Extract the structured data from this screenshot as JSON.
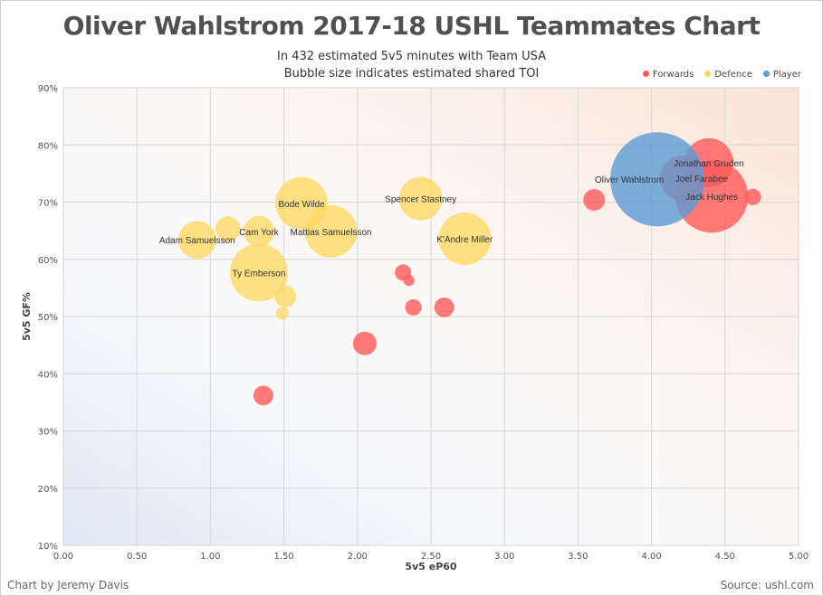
{
  "chart_data": {
    "type": "scatter",
    "subtype": "bubble",
    "title": "Oliver Wahlstrom 2017-18 USHL Teammates Chart",
    "subtitle": [
      "In 432 estimated 5v5 minutes with Team USA",
      "Bubble size indicates estimated shared TOI"
    ],
    "xlabel": "5v5 eP60",
    "ylabel": "5v5 GF%",
    "xlim": [
      0,
      5
    ],
    "ylim": [
      10,
      90
    ],
    "xticks": [
      "0.00",
      "0.50",
      "1.00",
      "1.50",
      "2.00",
      "2.50",
      "3.00",
      "3.50",
      "4.00",
      "4.50",
      "5.00"
    ],
    "yticks": [
      "10%",
      "20%",
      "30%",
      "40%",
      "50%",
      "60%",
      "70%",
      "80%",
      "90%"
    ],
    "grid": true,
    "legend_position": "top-right",
    "series": [
      {
        "name": "Forwards",
        "color": "#ff5a5a",
        "points": [
          {
            "label": "",
            "x": 3.61,
            "y": 70.4,
            "size": 23
          },
          {
            "label": "",
            "x": 4.69,
            "y": 70.9,
            "size": 13
          },
          {
            "label": "Jonathan Gruden",
            "x": 4.39,
            "y": 76.9,
            "size": 117
          },
          {
            "label": "Jack Hughes",
            "x": 4.41,
            "y": 71.0,
            "size": 256
          },
          {
            "label": "Joel Farabee",
            "x": 4.21,
            "y": 74.2,
            "size": 100
          },
          {
            "label": "",
            "x": 2.31,
            "y": 57.7,
            "size": 13
          },
          {
            "label": "",
            "x": 2.35,
            "y": 56.3,
            "size": 6
          },
          {
            "label": "",
            "x": 2.38,
            "y": 51.6,
            "size": 13
          },
          {
            "label": "",
            "x": 2.59,
            "y": 51.6,
            "size": 19
          },
          {
            "label": "",
            "x": 2.05,
            "y": 45.3,
            "size": 27
          },
          {
            "label": "",
            "x": 1.36,
            "y": 36.2,
            "size": 19
          }
        ]
      },
      {
        "name": "Defence",
        "color": "#ffd966",
        "points": [
          {
            "label": "Adam Samuelsson",
            "x": 0.91,
            "y": 63.4,
            "size": 70
          },
          {
            "label": "",
            "x": 1.12,
            "y": 65.3,
            "size": 31
          },
          {
            "label": "Cam York",
            "x": 1.33,
            "y": 64.9,
            "size": 46
          },
          {
            "label": "Bode Wilde",
            "x": 1.62,
            "y": 69.8,
            "size": 134
          },
          {
            "label": "Mattias Samuelsson",
            "x": 1.82,
            "y": 64.9,
            "size": 134
          },
          {
            "label": "Spencer Stastney",
            "x": 2.43,
            "y": 70.6,
            "size": 92
          },
          {
            "label": "K'Andre Miller",
            "x": 2.73,
            "y": 63.6,
            "size": 134
          },
          {
            "label": "Ty Emberson",
            "x": 1.33,
            "y": 57.7,
            "size": 164
          },
          {
            "label": "",
            "x": 1.51,
            "y": 53.5,
            "size": 23
          },
          {
            "label": "",
            "x": 1.49,
            "y": 50.6,
            "size": 8
          }
        ]
      },
      {
        "name": "Player",
        "color": "#5b9bd5",
        "points": [
          {
            "label": "Oliver Wahlstrom",
            "x": 4.04,
            "y": 74.0,
            "size": 432
          }
        ]
      }
    ]
  },
  "footer": {
    "credit": "Chart by Jeremy Davis",
    "source": "Source: ushl.com"
  }
}
